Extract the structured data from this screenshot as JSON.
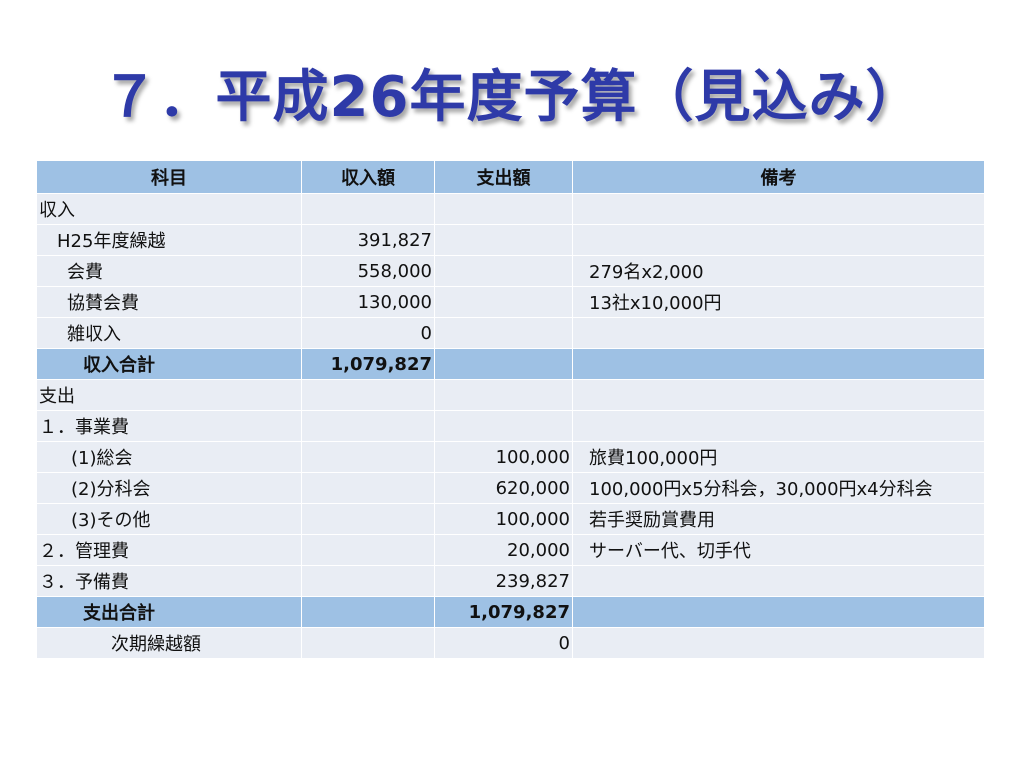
{
  "title": "７．平成26年度予算（見込み）",
  "table": {
    "headers": [
      "科目",
      "収入額",
      "支出額",
      "備考"
    ],
    "rows": [
      {
        "item": "収入",
        "income": "",
        "expense": "",
        "note": ""
      },
      {
        "item": "H25年度繰越",
        "income": "391,827",
        "expense": "",
        "note": ""
      },
      {
        "item": "会費",
        "income": "558,000",
        "expense": "",
        "note": "279名x2,000"
      },
      {
        "item": "協賛会費",
        "income": "130,000",
        "expense": "",
        "note": "13社x10,000円"
      },
      {
        "item": "雑収入",
        "income": "0",
        "expense": "",
        "note": ""
      },
      {
        "item": "収入合計",
        "income": "1,079,827",
        "expense": "",
        "note": ""
      },
      {
        "item": "支出",
        "income": "",
        "expense": "",
        "note": ""
      },
      {
        "item": "１．事業費",
        "income": "",
        "expense": "",
        "note": ""
      },
      {
        "item": "(1)総会",
        "income": "",
        "expense": "100,000",
        "note": "旅費100,000円"
      },
      {
        "item": "(2)分科会",
        "income": "",
        "expense": "620,000",
        "note": "100,000円x5分科会，30,000円x4分科会"
      },
      {
        "item": "(3)その他",
        "income": "",
        "expense": "100,000",
        "note": "若手奨励賞費用"
      },
      {
        "item": "２．管理費",
        "income": "",
        "expense": "20,000",
        "note": "サーバー代、切手代"
      },
      {
        "item": "３．予備費",
        "income": "",
        "expense": "239,827",
        "note": ""
      },
      {
        "item": "支出合計",
        "income": "",
        "expense": "1,079,827",
        "note": ""
      },
      {
        "item": "次期繰越額",
        "income": "",
        "expense": "0",
        "note": ""
      }
    ]
  }
}
